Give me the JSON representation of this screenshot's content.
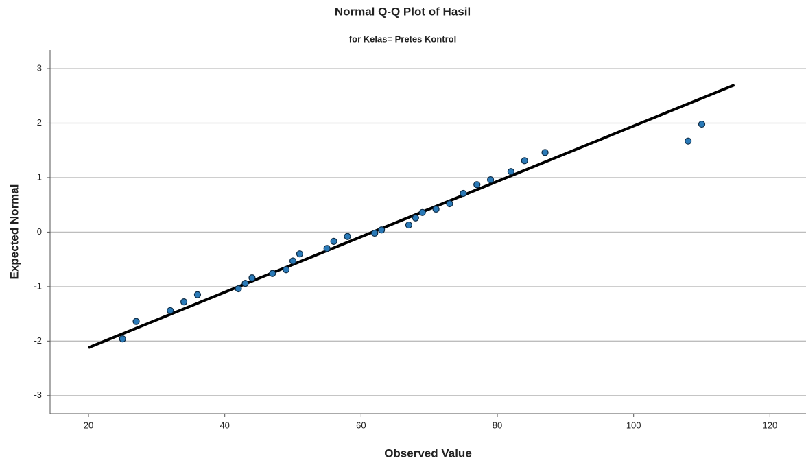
{
  "chart_data": {
    "type": "scatter",
    "title": "Normal Q-Q Plot of Hasil",
    "subtitle": "for Kelas= Pretes Kontrol",
    "x_label": "Observed Value",
    "y_label": "Expected Normal",
    "x": [
      25,
      27,
      32,
      34,
      36,
      42,
      43,
      44,
      47,
      49,
      50,
      51,
      55,
      56,
      58,
      62,
      63,
      67,
      68,
      69,
      71,
      73,
      75,
      77,
      79,
      82,
      84,
      87,
      108,
      110
    ],
    "values": [
      -1.96,
      -1.64,
      -1.44,
      -1.28,
      -1.15,
      -1.04,
      -0.94,
      -0.84,
      -0.76,
      -0.69,
      -0.53,
      -0.4,
      -0.3,
      -0.17,
      -0.08,
      -0.02,
      0.04,
      0.13,
      0.26,
      0.36,
      0.42,
      0.52,
      0.71,
      0.87,
      0.96,
      1.11,
      1.31,
      1.46,
      1.67,
      1.98
    ],
    "color": "#2a7ab8",
    "reference_line": {
      "x": [
        20,
        114.8
      ],
      "values": [
        -2.12,
        2.7
      ],
      "color": "#000000"
    },
    "xlim": [
      14.36,
      125.3
    ],
    "ylim": [
      -3.33,
      3.34
    ],
    "xticks": [
      20,
      40,
      60,
      80,
      100,
      120
    ],
    "yticks": [
      -3,
      -2,
      -1,
      0,
      1,
      2,
      3
    ],
    "grid": true
  }
}
